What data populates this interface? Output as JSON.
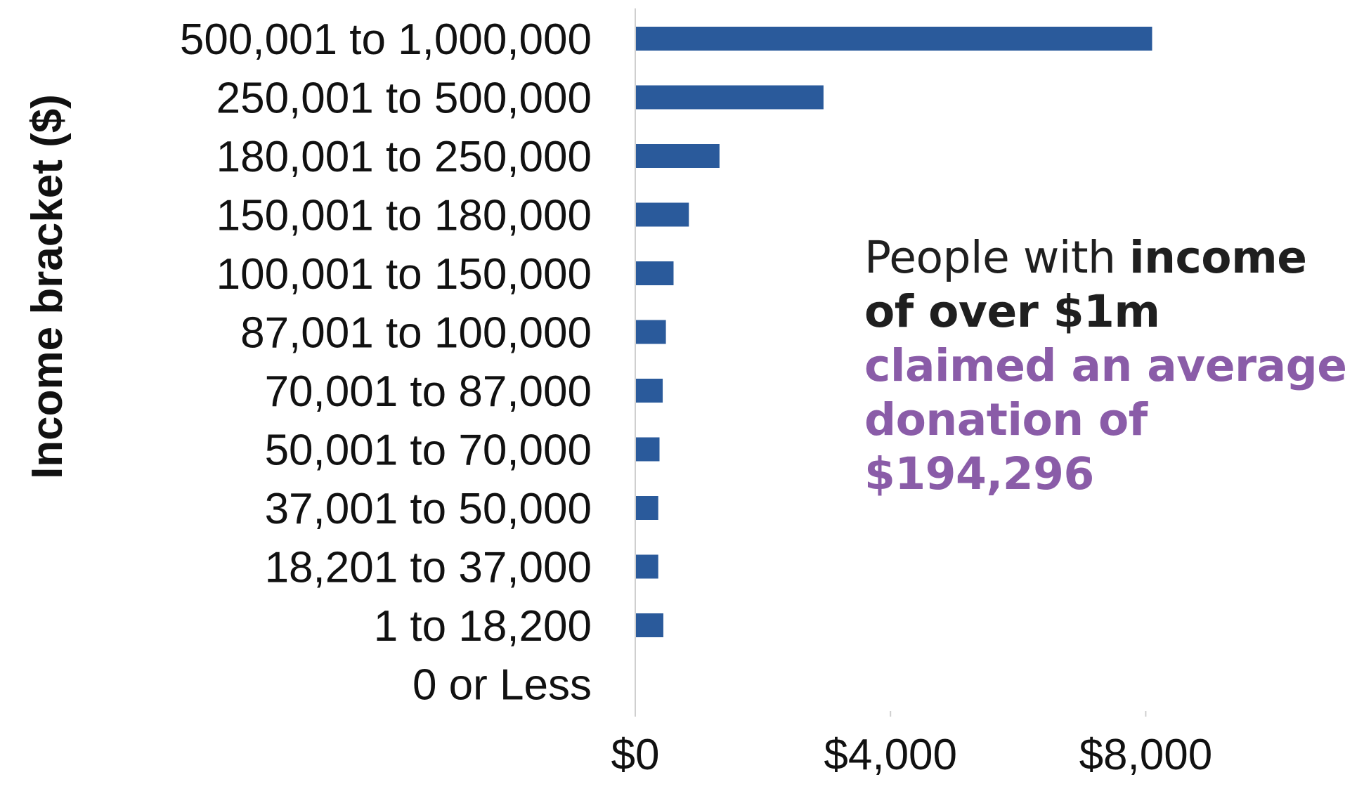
{
  "chart_data": {
    "type": "bar",
    "orientation": "horizontal",
    "categories": [
      "500,001 to 1,000,000",
      "250,001 to 500,000",
      "180,001 to 250,000",
      "150,001 to 180,000",
      "100,001 to 150,000",
      "87,001 to 100,000",
      "70,001 to 87,000",
      "50,001 to 70,000",
      "37,001 to 50,000",
      "18,201 to 37,000",
      "1 to 18,200",
      "0 or Less"
    ],
    "values": [
      8100,
      2950,
      1320,
      840,
      600,
      480,
      430,
      380,
      360,
      360,
      440,
      0
    ],
    "xlabel": "",
    "ylabel": "Income bracket ($)",
    "xlim": [
      0,
      12000
    ],
    "xticks": [
      0,
      4000,
      8000
    ],
    "xtick_labels": [
      "$0",
      "$4,000",
      "$8,000"
    ],
    "grid": false,
    "bar_color": "#2a5a9b",
    "annotation": {
      "part1": "People with ",
      "part2": "income of over $1m",
      "part3": " claimed an average donation of $194,296",
      "accent_color": "#8a5ca8",
      "text_color": "#1f1f1f"
    }
  }
}
